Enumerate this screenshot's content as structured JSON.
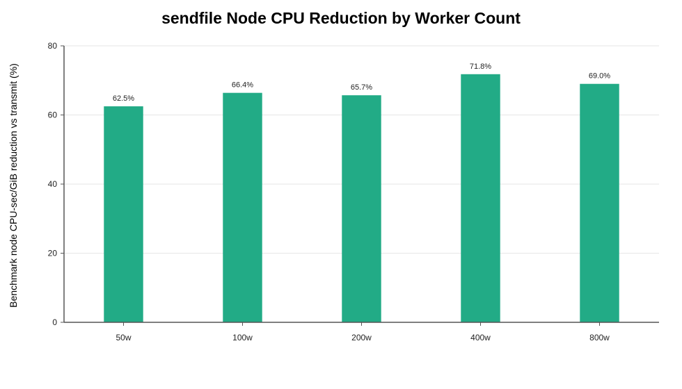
{
  "chart_data": {
    "type": "bar",
    "title": "sendfile Node CPU Reduction by Worker Count",
    "xlabel": "",
    "ylabel": "Benchmark node CPU-sec/GiB reduction vs transmit (%)",
    "categories": [
      "50w",
      "100w",
      "200w",
      "400w",
      "800w"
    ],
    "values": [
      62.5,
      66.4,
      65.7,
      71.8,
      69.0
    ],
    "data_labels": [
      "62.5%",
      "66.4%",
      "65.7%",
      "71.8%",
      "69.0%"
    ],
    "ylim": [
      0,
      80
    ],
    "yticks": [
      0,
      20,
      40,
      60,
      80
    ],
    "grid": true,
    "bar_color": "#22ab86"
  }
}
